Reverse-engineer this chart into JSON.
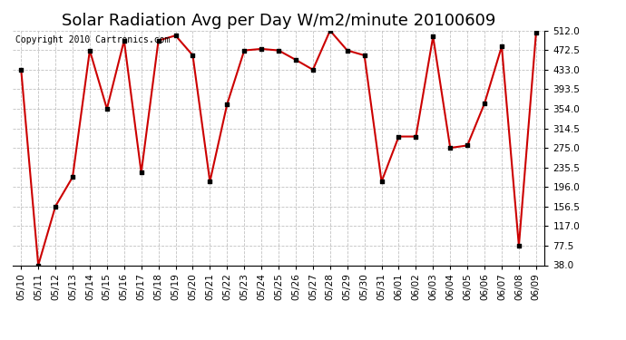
{
  "title": "Solar Radiation Avg per Day W/m2/minute 20100609",
  "copyright_text": "Copyright 2010 Cartronics.com",
  "labels": [
    "05/10",
    "05/11",
    "05/12",
    "05/13",
    "05/14",
    "05/15",
    "05/16",
    "05/17",
    "05/18",
    "05/19",
    "05/20",
    "05/21",
    "05/22",
    "05/23",
    "05/24",
    "05/25",
    "05/26",
    "05/27",
    "05/28",
    "05/29",
    "05/30",
    "05/31",
    "06/01",
    "06/02",
    "06/03",
    "06/04",
    "06/05",
    "06/06",
    "06/07",
    "06/08",
    "06/09"
  ],
  "values": [
    433,
    38,
    157,
    216,
    472,
    354,
    492,
    225,
    492,
    502,
    462,
    207,
    363,
    472,
    475,
    472,
    453,
    433,
    512,
    472,
    462,
    207,
    298,
    298,
    500,
    275,
    280,
    365,
    480,
    77,
    507
  ],
  "ylim_min": 38.0,
  "ylim_max": 512.0,
  "yticks": [
    38.0,
    77.5,
    117.0,
    156.5,
    196.0,
    235.5,
    275.0,
    314.5,
    354.0,
    393.5,
    433.0,
    472.5,
    512.0
  ],
  "line_color": "#cc0000",
  "marker_color": "#000000",
  "bg_color": "#ffffff",
  "grid_color": "#bbbbbb",
  "title_fontsize": 13,
  "copyright_fontsize": 7,
  "tick_fontsize": 7.5
}
